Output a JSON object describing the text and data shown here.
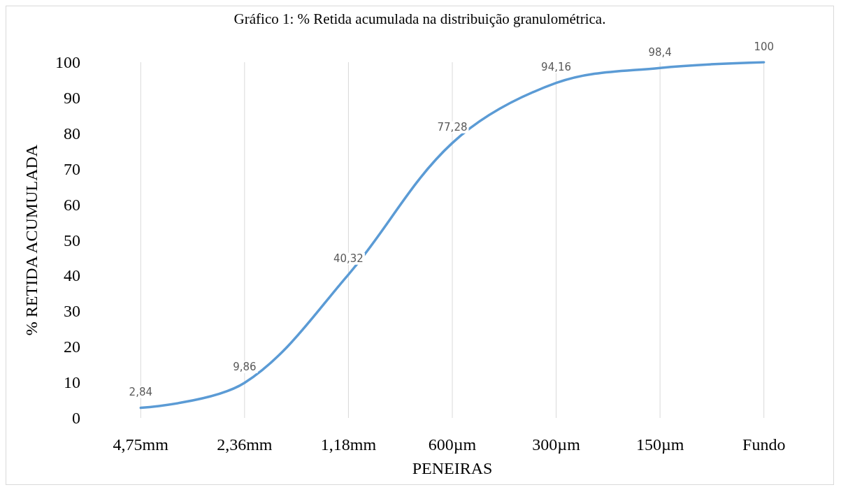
{
  "chart_data": {
    "type": "line",
    "title": "Gráfico 1: % Retida acumulada na distribuição granulométrica.",
    "xlabel": "PENEIRAS",
    "ylabel": "% RETIDA ACUMULADA",
    "categories": [
      "4,75mm",
      "2,36mm",
      "1,18mm",
      "600µm",
      "300µm",
      "150µm",
      "Fundo"
    ],
    "series": [
      {
        "color": "#5b9bd5",
        "values": [
          2.84,
          9.86,
          40.32,
          77.28,
          94.16,
          98.4,
          100
        ],
        "value_labels": [
          "2,84",
          "9,86",
          "40,32",
          "77,28",
          "94,16",
          "98,4",
          "100"
        ]
      }
    ],
    "ylim": [
      0,
      100
    ],
    "yticks": [
      0,
      10,
      20,
      30,
      40,
      50,
      60,
      70,
      80,
      90,
      100
    ],
    "grid": "x",
    "marker": "none",
    "line_style": "solid"
  }
}
